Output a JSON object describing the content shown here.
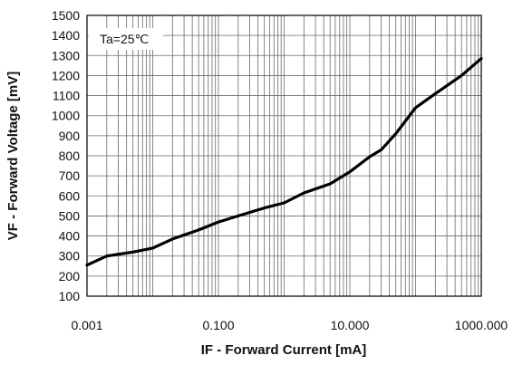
{
  "chart_data": {
    "type": "line",
    "title": "",
    "xlabel": "IF - Forward Current [mA]",
    "ylabel": "VF - Forward Voltage [mV]",
    "x_scale": "log",
    "xlim": [
      0.001,
      1000
    ],
    "ylim": [
      100,
      1500
    ],
    "x_tick_labels": [
      {
        "value": 0.001,
        "label": "0.001"
      },
      {
        "value": 0.1,
        "label": "0.100"
      },
      {
        "value": 10,
        "label": "10.000"
      },
      {
        "value": 1000,
        "label": "1000.000"
      }
    ],
    "y_tick_labels": [
      "100",
      "200",
      "300",
      "400",
      "500",
      "600",
      "700",
      "800",
      "900",
      "1000",
      "1100",
      "1200",
      "1300",
      "1400",
      "1500"
    ],
    "grid": true,
    "annotation": "Ta=25℃",
    "series": [
      {
        "color": "#000000",
        "x": [
          0.001,
          0.002,
          0.005,
          0.01,
          0.02,
          0.05,
          0.1,
          0.2,
          0.5,
          1,
          2,
          5,
          10,
          20,
          30,
          50,
          100,
          200,
          500,
          1000
        ],
        "y": [
          255,
          300,
          320,
          340,
          385,
          430,
          470,
          500,
          540,
          565,
          615,
          660,
          720,
          795,
          830,
          910,
          1040,
          1110,
          1200,
          1285
        ]
      }
    ]
  }
}
